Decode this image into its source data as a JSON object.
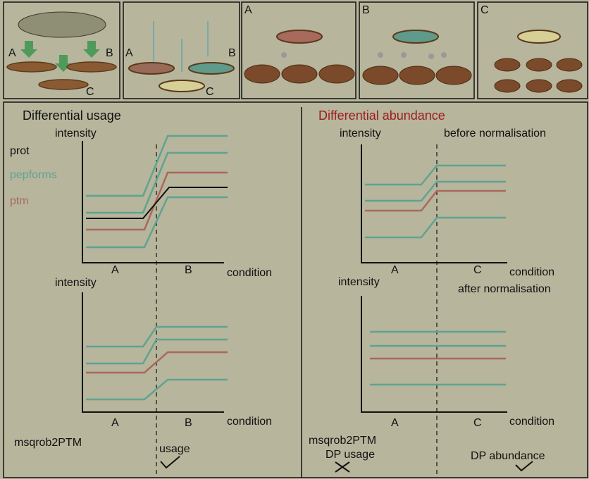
{
  "top_panels": [
    {
      "labels": [
        "A",
        "B",
        "C"
      ]
    },
    {
      "labels": [
        "A",
        "B",
        "C"
      ]
    },
    {
      "label": "A"
    },
    {
      "label": "B"
    },
    {
      "label": "C"
    }
  ],
  "left": {
    "title": "Differential usage",
    "legend": [
      "prot",
      "pepforms",
      "ptm"
    ],
    "plots": [
      {
        "y_label": "intensity",
        "x_categories": [
          "A",
          "B"
        ],
        "x_label": "condition"
      },
      {
        "y_label": "intensity",
        "x_categories": [
          "A",
          "B"
        ],
        "x_label": "condition"
      }
    ],
    "method": "msqrob2PTM",
    "result": "usage"
  },
  "right": {
    "title": "Differential abundance",
    "plots": [
      {
        "y_label": "intensity",
        "subtitle": "before normalisation",
        "x_categories": [
          "A",
          "C"
        ],
        "x_label": "condition"
      },
      {
        "y_label": "intensity",
        "subtitle": "after normalisation",
        "x_categories": [
          "A",
          "C"
        ],
        "x_label": "condition"
      }
    ],
    "method": "msqrob2PTM",
    "results": [
      "DP usage",
      "DP abundance"
    ]
  }
}
